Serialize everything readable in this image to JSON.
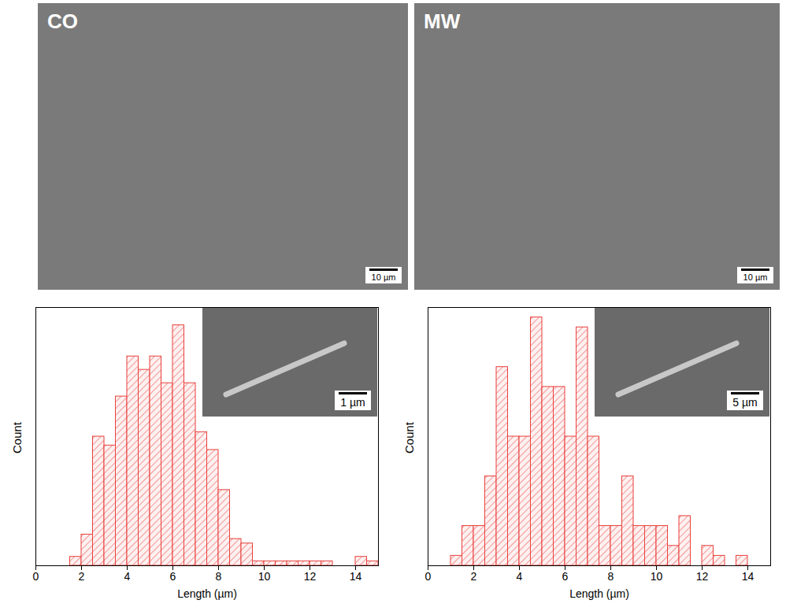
{
  "images": [
    {
      "label": "CO",
      "scale_bar": "10 µm"
    },
    {
      "label": "MW",
      "scale_bar": "10 µm"
    }
  ],
  "chart_data": [
    {
      "type": "histogram",
      "color": "#e8413c",
      "y_label": "Count",
      "x_label": "Length (µm)",
      "bins": [
        1.5,
        2,
        2.5,
        3,
        3.5,
        4,
        4.5,
        5,
        5.5,
        6,
        6.5,
        7,
        7.5,
        8,
        8.5,
        9,
        9.5,
        10,
        10.5,
        11,
        11.5,
        12,
        12.5,
        13,
        13.5,
        14,
        14.5,
        15
      ],
      "values": [
        2,
        7,
        29,
        27,
        38,
        47,
        44,
        47,
        41,
        54,
        41,
        30,
        26,
        17,
        6,
        5,
        1,
        1,
        1,
        1,
        1,
        1,
        1,
        0,
        0,
        2,
        1
      ],
      "xlim": [
        0,
        15
      ],
      "xticks": [
        0,
        2,
        4,
        6,
        8,
        10,
        12,
        14
      ],
      "ylim": [
        0,
        58
      ],
      "tick_labels": "x",
      "annotations": [
        "1 µm"
      ]
    },
    {
      "type": "histogram",
      "color": "#e8413c",
      "y_label": "Count",
      "x_label": "Length (µm)",
      "bins": [
        1,
        1.5,
        2,
        2.5,
        3,
        3.5,
        4,
        4.5,
        5,
        5.5,
        6,
        6.5,
        7,
        7.5,
        8,
        8.5,
        9,
        9.5,
        10,
        10.5,
        11,
        11.5,
        12,
        12.5,
        13,
        13.5,
        14
      ],
      "values": [
        1,
        4,
        4,
        9,
        20,
        13,
        13,
        25,
        18,
        18,
        13,
        24,
        13,
        4,
        4,
        9,
        4,
        4,
        4,
        2,
        5,
        0,
        2,
        1,
        0,
        1
      ],
      "xlim": [
        0,
        15
      ],
      "xticks": [
        0,
        2,
        4,
        6,
        8,
        10,
        12,
        14
      ],
      "ylim": [
        0,
        26
      ],
      "tick_labels": "x",
      "annotations": [
        "5 µm"
      ]
    }
  ]
}
